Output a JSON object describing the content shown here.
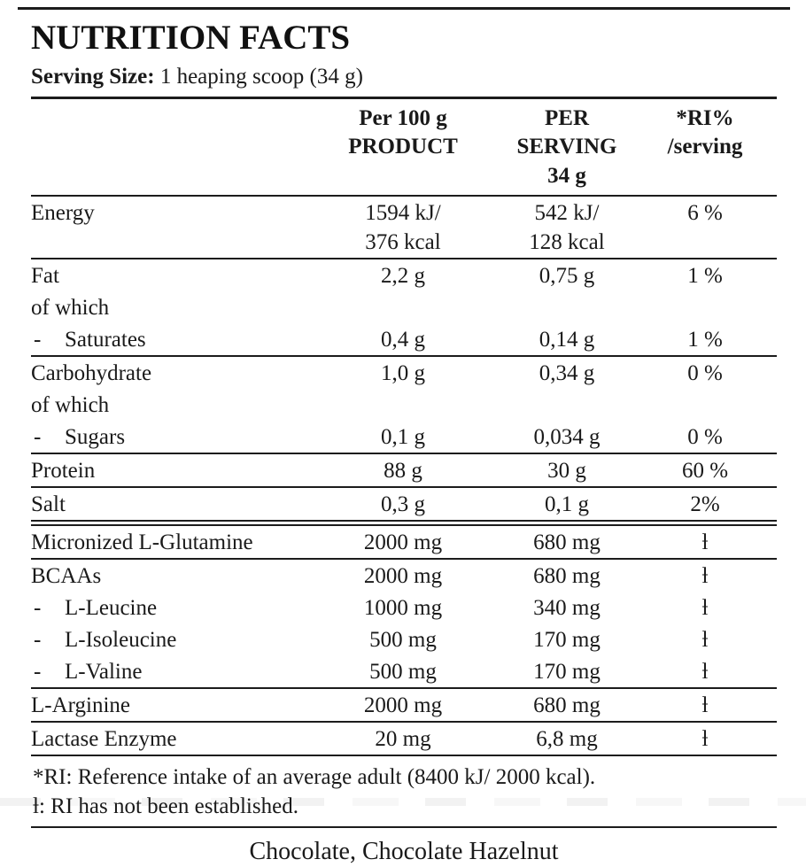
{
  "page": {
    "title": "NUTRITION FACTS",
    "serving_label": "Serving Size:",
    "serving_value": " 1 heaping scoop (34 g)",
    "flavors": "Chocolate, Chocolate Hazelnut"
  },
  "header": {
    "col_per100": [
      "Per 100 g",
      "PRODUCT"
    ],
    "col_serving": [
      "PER",
      "SERVING",
      "34 g"
    ],
    "col_ri": [
      "*RI%",
      "/serving"
    ]
  },
  "table": {
    "dash_symbol": "-",
    "rows": [
      {
        "name": "Energy",
        "dash": false,
        "per100": [
          "1594 kJ/",
          "376 kcal"
        ],
        "serving": [
          "542 kJ/",
          "128 kcal"
        ],
        "ri": "6 %",
        "divider": "single"
      },
      {
        "name": "Fat",
        "dash": false,
        "per100": [
          "2,2 g"
        ],
        "serving": [
          "0,75 g"
        ],
        "ri": "1 %",
        "divider": "none"
      },
      {
        "name": "of which",
        "dash": false,
        "per100": [],
        "serving": [],
        "ri": "",
        "divider": "none"
      },
      {
        "name": "Saturates",
        "dash": true,
        "per100": [
          "0,4 g"
        ],
        "serving": [
          "0,14 g"
        ],
        "ri": "1 %",
        "divider": "single"
      },
      {
        "name": "Carbohydrate",
        "dash": false,
        "per100": [
          "1,0 g"
        ],
        "serving": [
          "0,34 g"
        ],
        "ri": "0 %",
        "divider": "none"
      },
      {
        "name": "of which",
        "dash": false,
        "per100": [],
        "serving": [],
        "ri": "",
        "divider": "none"
      },
      {
        "name": "Sugars",
        "dash": true,
        "per100": [
          "0,1 g"
        ],
        "serving": [
          "0,034 g"
        ],
        "ri": "0 %",
        "divider": "single"
      },
      {
        "name": "Protein",
        "dash": false,
        "per100": [
          "88 g"
        ],
        "serving": [
          "30 g"
        ],
        "ri": "60 %",
        "divider": "single"
      },
      {
        "name": "Salt",
        "dash": false,
        "per100": [
          "0,3 g"
        ],
        "serving": [
          "0,1 g"
        ],
        "ri": "2%",
        "divider": "double"
      },
      {
        "name": "Micronized L-Glutamine",
        "dash": false,
        "per100": [
          "2000 mg"
        ],
        "serving": [
          "680 mg"
        ],
        "ri": "ƚ",
        "divider": "single"
      },
      {
        "name": "BCAAs",
        "dash": false,
        "per100": [
          "2000 mg"
        ],
        "serving": [
          "680 mg"
        ],
        "ri": "ƚ",
        "divider": "none"
      },
      {
        "name": "L-Leucine",
        "dash": true,
        "per100": [
          "1000 mg"
        ],
        "serving": [
          "340 mg"
        ],
        "ri": "ƚ",
        "divider": "none"
      },
      {
        "name": "L-Isoleucine",
        "dash": true,
        "per100": [
          "500 mg"
        ],
        "serving": [
          "170 mg"
        ],
        "ri": "ƚ",
        "divider": "none"
      },
      {
        "name": "L-Valine",
        "dash": true,
        "per100": [
          "500 mg"
        ],
        "serving": [
          "170 mg"
        ],
        "ri": "ƚ",
        "divider": "single"
      },
      {
        "name": "L-Arginine",
        "dash": false,
        "per100": [
          "2000 mg"
        ],
        "serving": [
          "680 mg"
        ],
        "ri": "ƚ",
        "divider": "single"
      },
      {
        "name": "Lactase Enzyme",
        "dash": false,
        "per100": [
          "20 mg"
        ],
        "serving": [
          "6,8 mg"
        ],
        "ri": "ƚ",
        "divider": "single"
      }
    ]
  },
  "footnotes": {
    "ri": "*RI: Reference intake of an average adult (8400 kJ/ 2000 kcal).",
    "not_established": "ƚ: RI has not been established."
  },
  "colors": {
    "background": "#ffffff",
    "text": "#1a1a1a",
    "rule": "#1c1c1c"
  }
}
